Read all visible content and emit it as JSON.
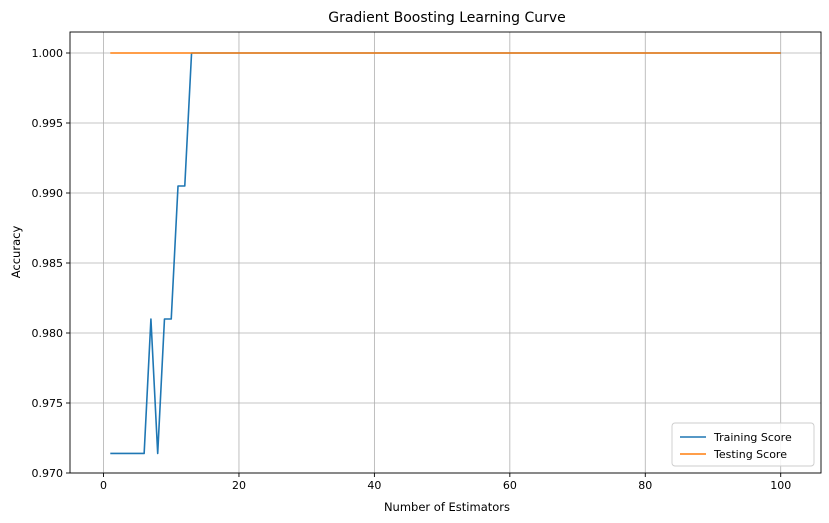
{
  "chart_data": {
    "type": "line",
    "title": "Gradient Boosting Learning Curve",
    "xlabel": "Number of Estimators",
    "ylabel": "Accuracy",
    "xlim": [
      -4.95,
      105.95
    ],
    "ylim": [
      0.97,
      1.0015
    ],
    "xticks": [
      0,
      20,
      40,
      60,
      80,
      100
    ],
    "xtick_labels": [
      "0",
      "20",
      "40",
      "60",
      "80",
      "100"
    ],
    "yticks": [
      0.97,
      0.975,
      0.98,
      0.985,
      0.99,
      0.995,
      1.0
    ],
    "ytick_labels": [
      "0.970",
      "0.975",
      "0.980",
      "0.985",
      "0.990",
      "0.995",
      "1.000"
    ],
    "grid": true,
    "legend_position": "lower-right",
    "series": [
      {
        "name": "Training Score",
        "color": "#1f77b4",
        "x": [
          1,
          2,
          3,
          4,
          5,
          6,
          7,
          8,
          9,
          10,
          11,
          12,
          13,
          100
        ],
        "y": [
          0.9714,
          0.9714,
          0.9714,
          0.9714,
          0.9714,
          0.9714,
          0.981,
          0.9714,
          0.981,
          0.981,
          0.9905,
          0.9905,
          1.0,
          1.0
        ]
      },
      {
        "name": "Testing Score",
        "color": "#ff7f0e",
        "x": [
          1,
          100
        ],
        "y": [
          1.0,
          1.0
        ]
      }
    ]
  }
}
